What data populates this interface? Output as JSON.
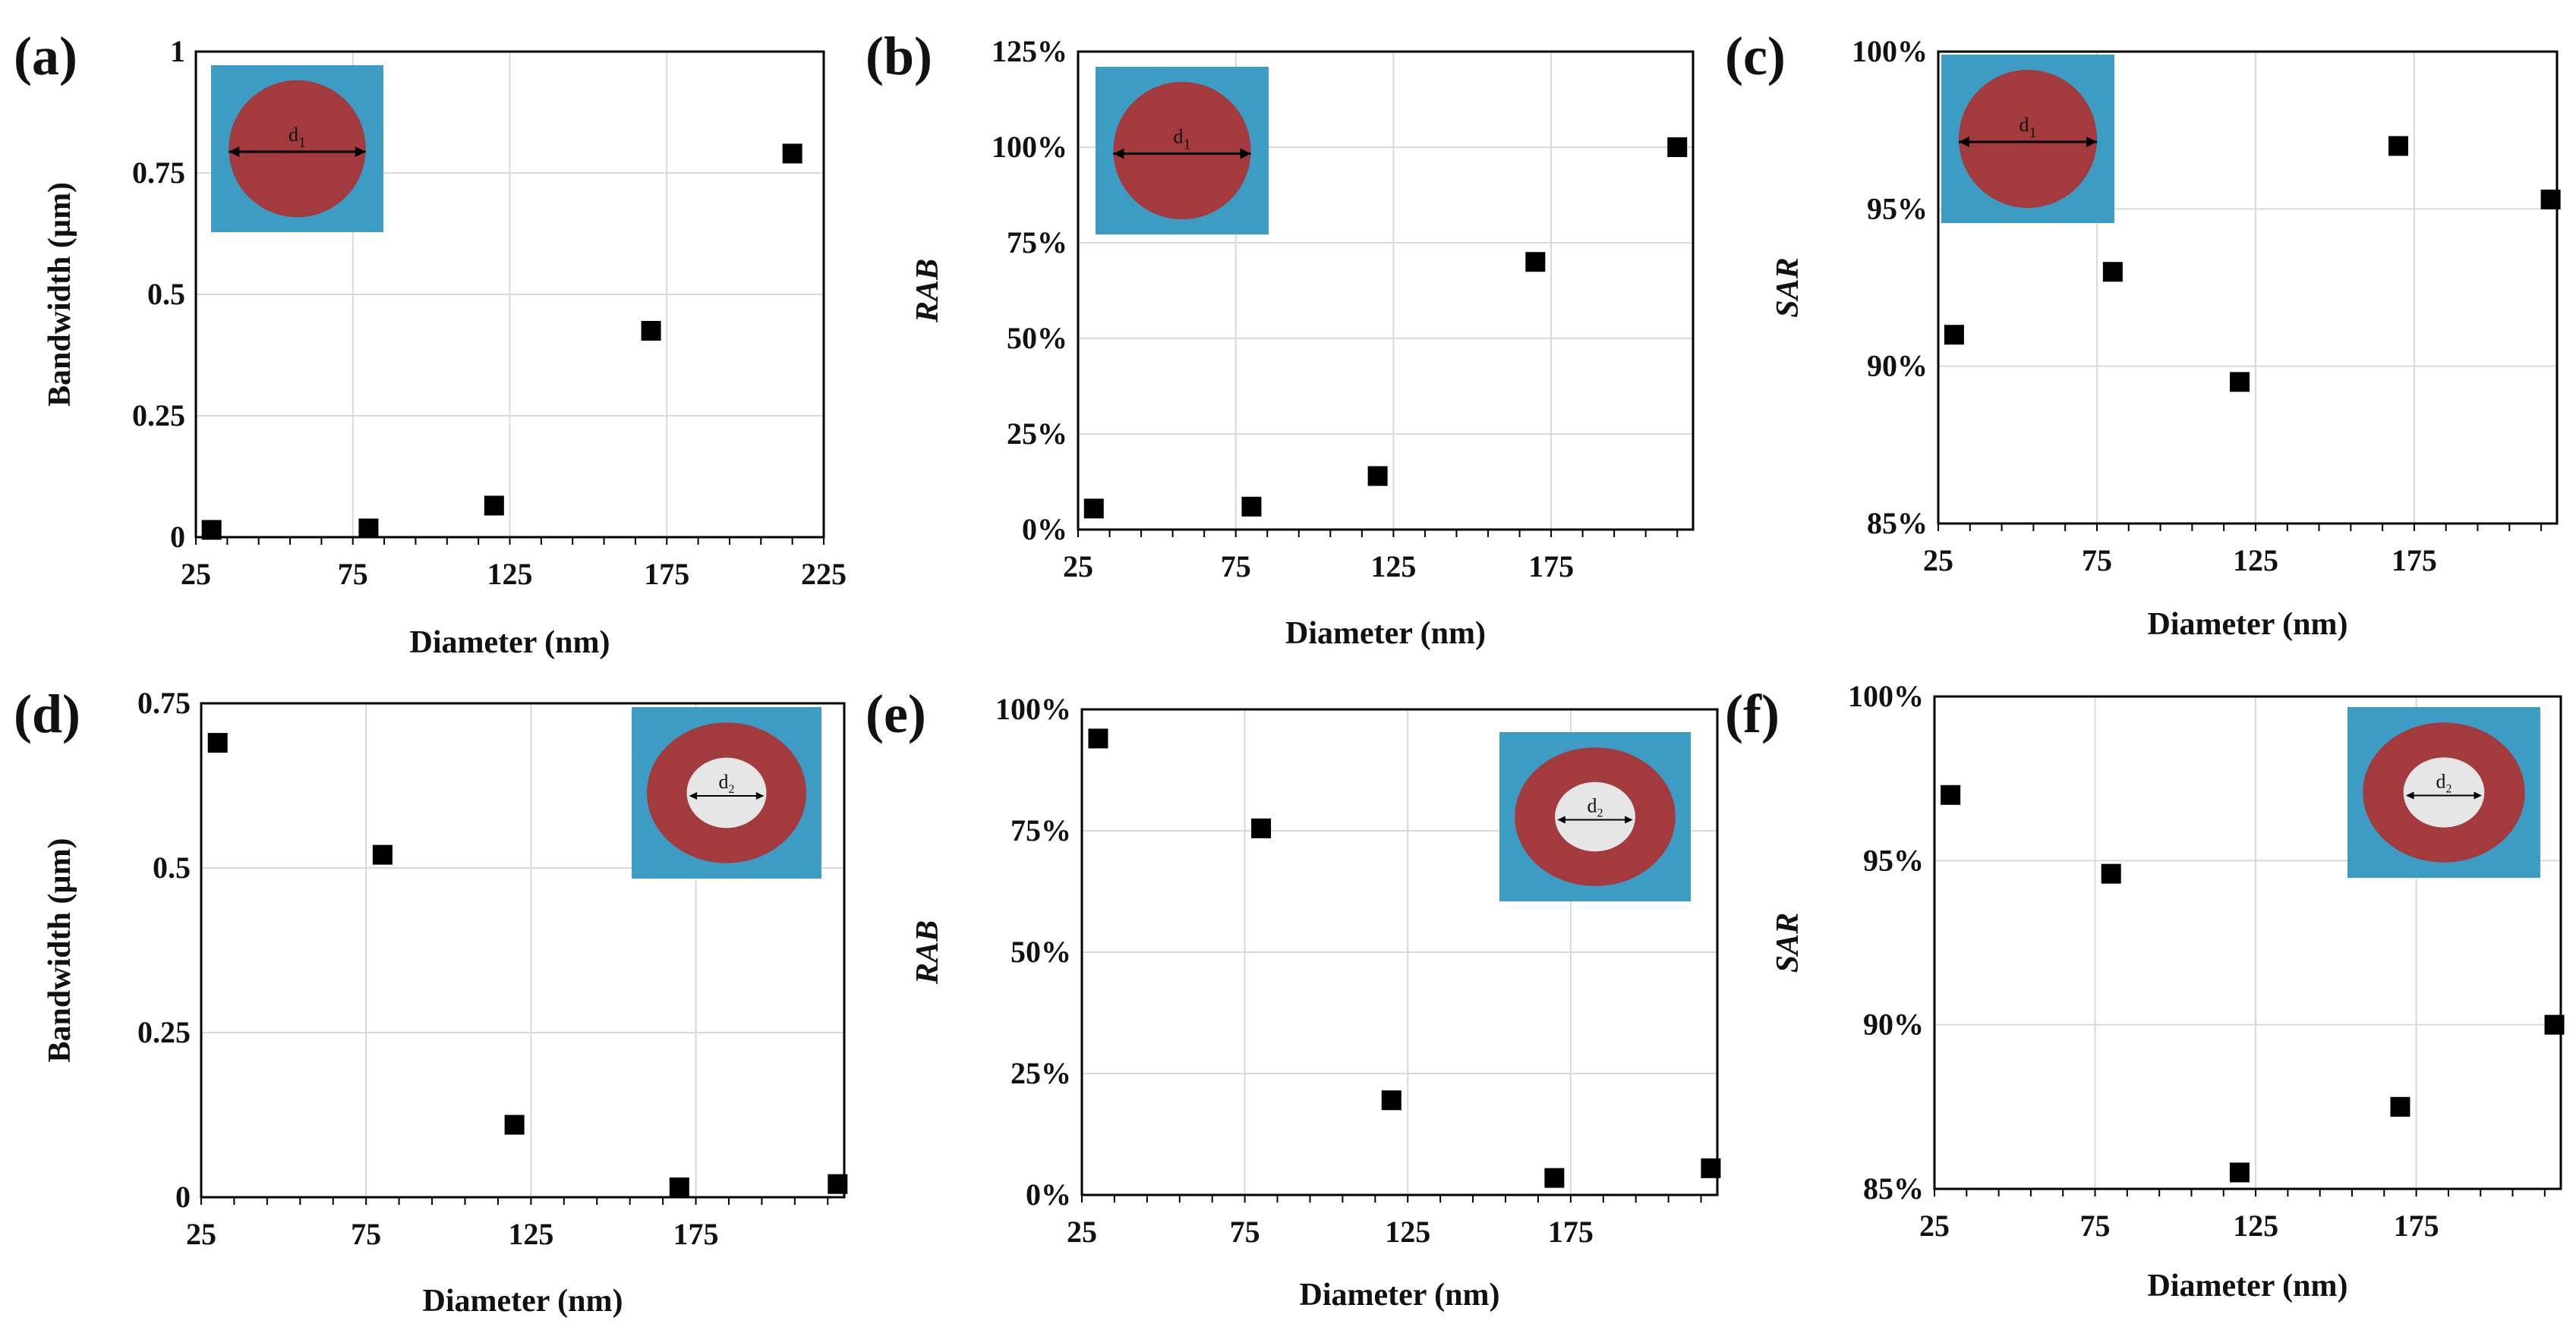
{
  "colors": {
    "inset_bg": "#3d9cc4",
    "inset_ring": "#a33a3d",
    "inset_hole": "#e6e6e6",
    "marker": "#000000",
    "grid": "#d9d9d9"
  },
  "chart_data": [
    {
      "panel": "(a)",
      "type": "scatter",
      "title": "",
      "xlabel": "Diameter (nm)",
      "ylabel": "Bandwidth (µm)",
      "ylabel_italic": false,
      "xlim": [
        25,
        225
      ],
      "xticks": [
        "25",
        "75",
        "125",
        "175",
        "225"
      ],
      "ylim": [
        0,
        1
      ],
      "yticks": [
        "0",
        "0.25",
        "0.5",
        "0.75",
        "1"
      ],
      "minor_x": 10,
      "x": [
        30,
        80,
        120,
        170,
        215
      ],
      "y": [
        0.015,
        0.018,
        0.065,
        0.425,
        0.79
      ],
      "inset": {
        "shape": "solid-circle",
        "label": "d",
        "subscript": "1",
        "position": "top-left"
      }
    },
    {
      "panel": "(b)",
      "type": "scatter",
      "title": "",
      "xlabel": "Diameter (nm)",
      "ylabel": "RAB",
      "ylabel_italic": true,
      "xlim": [
        25,
        220
      ],
      "xticks": [
        "25",
        "75",
        "125",
        "175"
      ],
      "ylim": [
        0,
        125
      ],
      "yticks": [
        "0%",
        "25%",
        "50%",
        "75%",
        "100%",
        "125%"
      ],
      "minor_x": 10,
      "x": [
        30,
        80,
        120,
        170,
        215
      ],
      "y": [
        5.5,
        6,
        14,
        70,
        100
      ],
      "inset": {
        "shape": "solid-circle",
        "label": "d",
        "subscript": "1",
        "position": "top-left"
      }
    },
    {
      "panel": "(c)",
      "type": "scatter",
      "title": "",
      "xlabel": "Diameter (nm)",
      "ylabel": "SAR",
      "ylabel_italic": true,
      "xlim": [
        25,
        220
      ],
      "xticks": [
        "25",
        "75",
        "125",
        "175"
      ],
      "ylim": [
        85,
        100
      ],
      "yticks": [
        "85%",
        "90%",
        "95%",
        "100%"
      ],
      "minor_x": 10,
      "x": [
        30,
        80,
        120,
        170,
        218
      ],
      "y": [
        91,
        93,
        89.5,
        97,
        95.3
      ],
      "inset": {
        "shape": "solid-circle",
        "label": "d",
        "subscript": "1",
        "position": "top-left"
      }
    },
    {
      "panel": "(d)",
      "type": "scatter",
      "title": "",
      "xlabel": "Diameter (nm)",
      "ylabel": "Bandwidth (µm)",
      "ylabel_italic": false,
      "xlim": [
        25,
        220
      ],
      "xticks": [
        "25",
        "75",
        "125",
        "175"
      ],
      "ylim": [
        0,
        0.75
      ],
      "yticks": [
        "0",
        "0.25",
        "0.5",
        "0.75"
      ],
      "minor_x": 10,
      "x": [
        30,
        80,
        120,
        170,
        218
      ],
      "y": [
        0.69,
        0.52,
        0.11,
        0.015,
        0.02
      ],
      "inset": {
        "shape": "ring",
        "label": "d",
        "subscript": "2",
        "position": "top-right"
      }
    },
    {
      "panel": "(e)",
      "type": "scatter",
      "title": "",
      "xlabel": "Diameter (nm)",
      "ylabel": "RAB",
      "ylabel_italic": true,
      "xlim": [
        25,
        220
      ],
      "xticks": [
        "25",
        "75",
        "125",
        "175"
      ],
      "ylim": [
        0,
        100
      ],
      "yticks": [
        "0%",
        "25%",
        "50%",
        "75%",
        "100%"
      ],
      "minor_x": 10,
      "x": [
        30,
        80,
        120,
        170,
        218
      ],
      "y": [
        94,
        75.5,
        19.5,
        3.5,
        5.5
      ],
      "inset": {
        "shape": "ring",
        "label": "d",
        "subscript": "2",
        "position": "top-right"
      }
    },
    {
      "panel": "(f)",
      "type": "scatter",
      "title": "",
      "xlabel": "Diameter (nm)",
      "ylabel": "SAR",
      "ylabel_italic": true,
      "xlim": [
        25,
        220
      ],
      "xticks": [
        "25",
        "75",
        "125",
        "175"
      ],
      "ylim": [
        85,
        100
      ],
      "yticks": [
        "85%",
        "90%",
        "95%",
        "100%"
      ],
      "minor_x": 10,
      "x": [
        30,
        80,
        120,
        170,
        218
      ],
      "y": [
        97,
        94.6,
        85.5,
        87.5,
        90
      ],
      "inset": {
        "shape": "ring",
        "label": "d",
        "subscript": "2",
        "position": "top-right"
      }
    }
  ]
}
